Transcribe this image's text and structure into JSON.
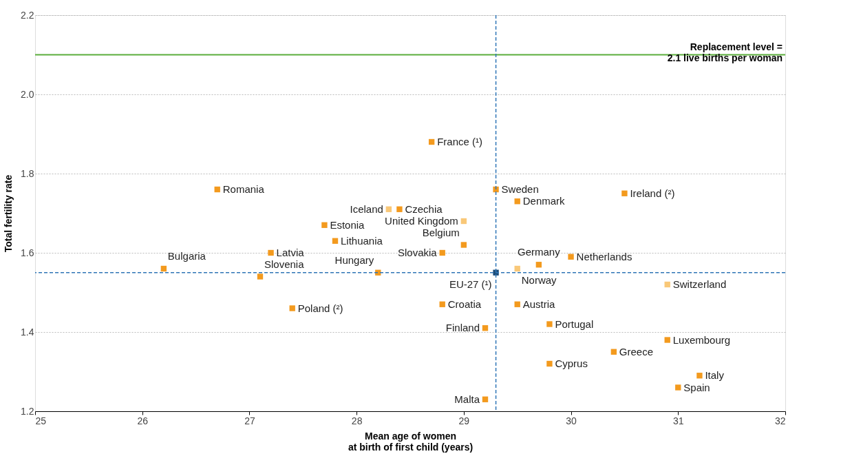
{
  "chart_data": {
    "type": "scatter",
    "xlabel": "Mean age of women\nat birth of first child (years)",
    "ylabel": "Total fertility rate",
    "x": [
      28.7,
      26.7,
      28.3,
      28.4,
      29.3,
      29.5,
      30.5,
      29.0,
      27.7,
      27.8,
      29.0,
      27.2,
      28.8,
      30.0,
      29.5,
      29.7,
      26.2,
      27.1,
      28.2,
      29.3,
      30.9,
      27.4,
      28.8,
      29.5,
      29.8,
      29.2,
      30.9,
      30.4,
      29.8,
      31.2,
      31.0,
      29.2
    ],
    "values": [
      1.88,
      1.76,
      1.71,
      1.71,
      1.76,
      1.73,
      1.75,
      1.68,
      1.67,
      1.63,
      1.62,
      1.6,
      1.6,
      1.59,
      1.56,
      1.57,
      1.56,
      1.54,
      1.55,
      1.55,
      1.52,
      1.46,
      1.47,
      1.47,
      1.42,
      1.41,
      1.38,
      1.35,
      1.32,
      1.29,
      1.26,
      1.23
    ],
    "colors": [
      "#f39a1e",
      "#f39a1e",
      "#f9c878",
      "#f39a1e",
      "#f39a1e",
      "#f39a1e",
      "#f39a1e",
      "#f9c878",
      "#f39a1e",
      "#f39a1e",
      "#f39a1e",
      "#f39a1e",
      "#f39a1e",
      "#f39a1e",
      "#f9c878",
      "#f39a1e",
      "#f39a1e",
      "#f39a1e",
      "#f39a1e",
      "#1f4e79",
      "#f9c878",
      "#f39a1e",
      "#f39a1e",
      "#f39a1e",
      "#f39a1e",
      "#f39a1e",
      "#f39a1e",
      "#f39a1e",
      "#f39a1e",
      "#f39a1e",
      "#f39a1e",
      "#f39a1e"
    ],
    "marker": "square",
    "annotations": [
      {
        "text": "France (¹)",
        "x": 28.7,
        "y": 1.88
      },
      {
        "text": "Romania",
        "x": 26.7,
        "y": 1.76
      },
      {
        "text": "Iceland",
        "x": 28.3,
        "y": 1.71
      },
      {
        "text": "Czechia",
        "x": 28.4,
        "y": 1.71
      },
      {
        "text": "Sweden",
        "x": 29.3,
        "y": 1.76
      },
      {
        "text": "Denmark",
        "x": 29.5,
        "y": 1.73
      },
      {
        "text": "Ireland  (²)",
        "x": 30.5,
        "y": 1.75
      },
      {
        "text": "United Kingdom",
        "x": 29.0,
        "y": 1.68
      },
      {
        "text": "Estonia",
        "x": 27.7,
        "y": 1.67
      },
      {
        "text": "Lithuania",
        "x": 27.8,
        "y": 1.63
      },
      {
        "text": "Belgium",
        "x": 29.0,
        "y": 1.62
      },
      {
        "text": "Latvia",
        "x": 27.2,
        "y": 1.6
      },
      {
        "text": "Slovakia",
        "x": 28.8,
        "y": 1.6
      },
      {
        "text": "Netherlands",
        "x": 30.0,
        "y": 1.59
      },
      {
        "text": "Norway",
        "x": 29.5,
        "y": 1.56
      },
      {
        "text": "Germany",
        "x": 29.7,
        "y": 1.57
      },
      {
        "text": "Bulgaria",
        "x": 26.2,
        "y": 1.56
      },
      {
        "text": "Slovenia",
        "x": 27.1,
        "y": 1.54
      },
      {
        "text": "Hungary",
        "x": 28.2,
        "y": 1.55
      },
      {
        "text": "EU-27 (¹)",
        "x": 29.3,
        "y": 1.55
      },
      {
        "text": "Switzerland",
        "x": 30.9,
        "y": 1.52
      },
      {
        "text": "Poland (²)",
        "x": 27.4,
        "y": 1.46
      },
      {
        "text": "Croatia",
        "x": 28.8,
        "y": 1.47
      },
      {
        "text": "Austria",
        "x": 29.5,
        "y": 1.47
      },
      {
        "text": "Portugal",
        "x": 29.8,
        "y": 1.42
      },
      {
        "text": "Finland",
        "x": 29.2,
        "y": 1.41
      },
      {
        "text": "Luxembourg",
        "x": 30.9,
        "y": 1.38
      },
      {
        "text": "Greece",
        "x": 30.4,
        "y": 1.35
      },
      {
        "text": "Cyprus",
        "x": 29.8,
        "y": 1.32
      },
      {
        "text": "Italy",
        "x": 31.2,
        "y": 1.29
      },
      {
        "text": "Spain",
        "x": 31.0,
        "y": 1.26
      },
      {
        "text": "Malta",
        "x": 29.2,
        "y": 1.23
      }
    ],
    "ref_lines": [
      {
        "axis": "y",
        "value": 2.1,
        "label": "Replacement level =\n2.1 live births per woman",
        "color": "#5aad3b",
        "line_style": "solid"
      },
      {
        "axis": "x",
        "value": 29.3,
        "label": null,
        "color": "#2e75b6",
        "line_style": "dashed"
      },
      {
        "axis": "y",
        "value": 1.55,
        "label": null,
        "color": "#2e75b6",
        "line_style": "dashed"
      }
    ],
    "xlim": [
      25,
      32
    ],
    "xticks": [
      25,
      26,
      27,
      28,
      29,
      30,
      31,
      32
    ],
    "ylim": [
      1.2,
      2.2
    ],
    "yticks": [
      1.2,
      1.4,
      1.6,
      1.8,
      {
        "value": 2,
        "label": "2.0"
      },
      2.2
    ],
    "grid": "y"
  }
}
